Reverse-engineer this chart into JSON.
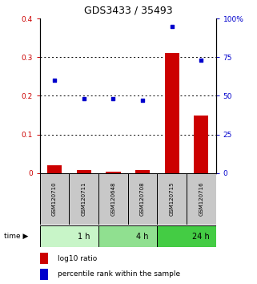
{
  "title": "GDS3433 / 35493",
  "samples": [
    "GSM120710",
    "GSM120711",
    "GSM120648",
    "GSM120708",
    "GSM120715",
    "GSM120716"
  ],
  "log10_ratio": [
    0.02,
    0.008,
    0.005,
    0.008,
    0.31,
    0.15
  ],
  "percentile_rank": [
    60,
    48,
    48,
    47,
    95,
    73
  ],
  "time_groups": [
    {
      "label": "1 h",
      "start": 0,
      "end": 2,
      "color": "#c8f5c8"
    },
    {
      "label": "4 h",
      "start": 2,
      "end": 4,
      "color": "#90e090"
    },
    {
      "label": "24 h",
      "start": 4,
      "end": 6,
      "color": "#44cc44"
    }
  ],
  "left_ylim": [
    0,
    0.4
  ],
  "right_ylim": [
    0,
    100
  ],
  "left_yticks": [
    0,
    0.1,
    0.2,
    0.3,
    0.4
  ],
  "right_yticks": [
    0,
    25,
    50,
    75,
    100
  ],
  "left_yticklabels": [
    "0",
    "0.1",
    "0.2",
    "0.3",
    "0.4"
  ],
  "right_yticklabels": [
    "0",
    "25",
    "50",
    "75",
    "100%"
  ],
  "bar_color": "#cc0000",
  "scatter_color": "#0000cc",
  "sample_bg_color": "#c8c8c8",
  "legend_bar_label": "log10 ratio",
  "legend_scatter_label": "percentile rank within the sample",
  "title_fontsize": 9,
  "tick_fontsize": 6.5,
  "sample_fontsize": 5.0,
  "time_fontsize": 7,
  "legend_fontsize": 6.5
}
